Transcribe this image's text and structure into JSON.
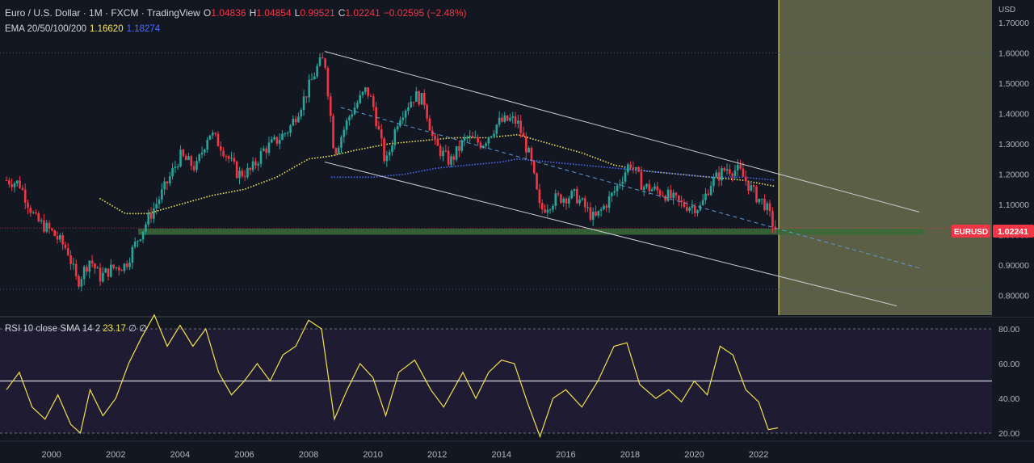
{
  "header": {
    "title": "Euro / U.S. Dollar · 1M · FXCM · TradingView",
    "open_label": "O",
    "open": "1.04836",
    "high_label": "H",
    "high": "1.04854",
    "low_label": "L",
    "low": "0.99521",
    "close_label": "C",
    "close": "1.02241",
    "change": "−0.02595 (−2.48%)",
    "ema_label": "EMA 20/50/100/200",
    "ema_value_1": "1.16620",
    "ema_value_2": "1.18274"
  },
  "rsi_header": {
    "label": "RSI 10 close SMA 14 2",
    "value": "23.17",
    "extra_1": "∅",
    "extra_2": "∅"
  },
  "price_axis": {
    "unit": "USD",
    "ticks": [
      "1.70000",
      "1.60000",
      "1.50000",
      "1.40000",
      "1.30000",
      "1.20000",
      "1.10000",
      "1.00000",
      "0.90000",
      "0.80000"
    ],
    "symbol_tag": "EURUSD",
    "last_price_tag": "1.02241"
  },
  "rsi_axis": {
    "ticks": [
      "80.00",
      "60.00",
      "40.00",
      "20.00"
    ]
  },
  "time_axis": {
    "ticks": [
      "2000",
      "2002",
      "2004",
      "2006",
      "2008",
      "2010",
      "2012",
      "2014",
      "2016",
      "2018",
      "2020",
      "2022"
    ]
  },
  "colors": {
    "background": "#131722",
    "bull": "#26a69a",
    "bear": "#f23645",
    "ema_yellow": "#f5e85a",
    "ema_blue": "#4d6bff",
    "rsi_line": "#f2e14b",
    "projection_zone": "#5b5f45",
    "support_zone": "#3a6b3a"
  },
  "chart_data": [
    {
      "type": "candlestick",
      "title": "Euro / U.S. Dollar · 1M · FXCM",
      "x_range": [
        1998.6,
        2022.6
      ],
      "ylim": [
        0.76,
        1.72
      ],
      "y_unit": "USD",
      "approximate_monthly_closes": [
        {
          "x": 1998.6,
          "y": 1.18
        },
        {
          "x": 1999.0,
          "y": 1.17
        },
        {
          "x": 1999.5,
          "y": 1.05
        },
        {
          "x": 2000.0,
          "y": 1.01
        },
        {
          "x": 2000.5,
          "y": 0.95
        },
        {
          "x": 2000.8,
          "y": 0.84
        },
        {
          "x": 2001.2,
          "y": 0.92
        },
        {
          "x": 2001.5,
          "y": 0.86
        },
        {
          "x": 2001.9,
          "y": 0.89
        },
        {
          "x": 2002.3,
          "y": 0.9
        },
        {
          "x": 2002.7,
          "y": 0.99
        },
        {
          "x": 2003.0,
          "y": 1.05
        },
        {
          "x": 2003.5,
          "y": 1.15
        },
        {
          "x": 2004.0,
          "y": 1.26
        },
        {
          "x": 2004.5,
          "y": 1.22
        },
        {
          "x": 2004.9,
          "y": 1.34
        },
        {
          "x": 2005.3,
          "y": 1.29
        },
        {
          "x": 2005.8,
          "y": 1.2
        },
        {
          "x": 2006.2,
          "y": 1.21
        },
        {
          "x": 2006.6,
          "y": 1.28
        },
        {
          "x": 2007.0,
          "y": 1.31
        },
        {
          "x": 2007.4,
          "y": 1.35
        },
        {
          "x": 2007.9,
          "y": 1.46
        },
        {
          "x": 2008.3,
          "y": 1.56
        },
        {
          "x": 2008.5,
          "y": 1.58
        },
        {
          "x": 2008.8,
          "y": 1.27
        },
        {
          "x": 2009.3,
          "y": 1.4
        },
        {
          "x": 2009.8,
          "y": 1.48
        },
        {
          "x": 2010.0,
          "y": 1.43
        },
        {
          "x": 2010.4,
          "y": 1.23
        },
        {
          "x": 2010.8,
          "y": 1.39
        },
        {
          "x": 2011.3,
          "y": 1.46
        },
        {
          "x": 2011.6,
          "y": 1.44
        },
        {
          "x": 2011.9,
          "y": 1.3
        },
        {
          "x": 2012.4,
          "y": 1.24
        },
        {
          "x": 2012.9,
          "y": 1.32
        },
        {
          "x": 2013.4,
          "y": 1.3
        },
        {
          "x": 2013.9,
          "y": 1.37
        },
        {
          "x": 2014.3,
          "y": 1.38
        },
        {
          "x": 2014.5,
          "y": 1.37
        },
        {
          "x": 2014.9,
          "y": 1.25
        },
        {
          "x": 2015.2,
          "y": 1.08
        },
        {
          "x": 2015.7,
          "y": 1.12
        },
        {
          "x": 2016.3,
          "y": 1.13
        },
        {
          "x": 2016.9,
          "y": 1.05
        },
        {
          "x": 2017.5,
          "y": 1.14
        },
        {
          "x": 2018.0,
          "y": 1.24
        },
        {
          "x": 2018.4,
          "y": 1.16
        },
        {
          "x": 2019.0,
          "y": 1.14
        },
        {
          "x": 2019.6,
          "y": 1.1
        },
        {
          "x": 2020.2,
          "y": 1.09
        },
        {
          "x": 2020.5,
          "y": 1.17
        },
        {
          "x": 2021.0,
          "y": 1.22
        },
        {
          "x": 2021.4,
          "y": 1.21
        },
        {
          "x": 2021.9,
          "y": 1.13
        },
        {
          "x": 2022.2,
          "y": 1.1
        },
        {
          "x": 2022.5,
          "y": 1.02
        }
      ],
      "ema_yellow": [
        {
          "x": 2001.5,
          "y": 1.12
        },
        {
          "x": 2002.3,
          "y": 1.07
        },
        {
          "x": 2003.0,
          "y": 1.07
        },
        {
          "x": 2004.0,
          "y": 1.1
        },
        {
          "x": 2005.0,
          "y": 1.13
        },
        {
          "x": 2006.0,
          "y": 1.15
        },
        {
          "x": 2007.0,
          "y": 1.19
        },
        {
          "x": 2008.0,
          "y": 1.25
        },
        {
          "x": 2008.7,
          "y": 1.26
        },
        {
          "x": 2009.5,
          "y": 1.28
        },
        {
          "x": 2010.5,
          "y": 1.3
        },
        {
          "x": 2011.5,
          "y": 1.31
        },
        {
          "x": 2012.5,
          "y": 1.32
        },
        {
          "x": 2013.5,
          "y": 1.32
        },
        {
          "x": 2014.5,
          "y": 1.33
        },
        {
          "x": 2015.5,
          "y": 1.3
        },
        {
          "x": 2016.5,
          "y": 1.27
        },
        {
          "x": 2017.5,
          "y": 1.23
        },
        {
          "x": 2018.5,
          "y": 1.21
        },
        {
          "x": 2019.5,
          "y": 1.2
        },
        {
          "x": 2020.5,
          "y": 1.19
        },
        {
          "x": 2021.5,
          "y": 1.18
        },
        {
          "x": 2022.5,
          "y": 1.16
        }
      ],
      "ema_blue": [
        {
          "x": 2008.7,
          "y": 1.19
        },
        {
          "x": 2010.0,
          "y": 1.19
        },
        {
          "x": 2011.0,
          "y": 1.2
        },
        {
          "x": 2012.0,
          "y": 1.22
        },
        {
          "x": 2013.0,
          "y": 1.23
        },
        {
          "x": 2014.0,
          "y": 1.24
        },
        {
          "x": 2014.5,
          "y": 1.25
        },
        {
          "x": 2015.5,
          "y": 1.24
        },
        {
          "x": 2016.5,
          "y": 1.23
        },
        {
          "x": 2017.5,
          "y": 1.22
        },
        {
          "x": 2018.5,
          "y": 1.21
        },
        {
          "x": 2019.5,
          "y": 1.2
        },
        {
          "x": 2020.5,
          "y": 1.19
        },
        {
          "x": 2021.5,
          "y": 1.19
        },
        {
          "x": 2022.5,
          "y": 1.18
        }
      ],
      "channel_upper": [
        {
          "x": 2008.5,
          "y": 1.605
        },
        {
          "x": 2027.0,
          "y": 1.075
        }
      ],
      "channel_lower": [
        {
          "x": 2008.5,
          "y": 1.24
        },
        {
          "x": 2026.3,
          "y": 0.765
        }
      ],
      "channel_mid": [
        {
          "x": 2009.0,
          "y": 1.42
        },
        {
          "x": 2027.0,
          "y": 0.89
        }
      ],
      "support_zone": [
        1.0,
        1.02
      ],
      "last_close": 1.02241
    },
    {
      "type": "line",
      "title": "RSI 10 close SMA 14 2",
      "x_range": [
        1998.6,
        2022.6
      ],
      "ylim": [
        15,
        90
      ],
      "levels": [
        80,
        50,
        20
      ],
      "series": [
        {
          "values": [
            {
              "x": 1998.6,
              "y": 45
            },
            {
              "x": 1999.0,
              "y": 55
            },
            {
              "x": 1999.4,
              "y": 35
            },
            {
              "x": 1999.8,
              "y": 28
            },
            {
              "x": 2000.2,
              "y": 42
            },
            {
              "x": 2000.6,
              "y": 25
            },
            {
              "x": 2000.9,
              "y": 20
            },
            {
              "x": 2001.2,
              "y": 45
            },
            {
              "x": 2001.6,
              "y": 30
            },
            {
              "x": 2002.0,
              "y": 40
            },
            {
              "x": 2002.4,
              "y": 60
            },
            {
              "x": 2002.8,
              "y": 75
            },
            {
              "x": 2003.2,
              "y": 88
            },
            {
              "x": 2003.6,
              "y": 70
            },
            {
              "x": 2004.0,
              "y": 82
            },
            {
              "x": 2004.4,
              "y": 70
            },
            {
              "x": 2004.8,
              "y": 80
            },
            {
              "x": 2005.2,
              "y": 55
            },
            {
              "x": 2005.6,
              "y": 42
            },
            {
              "x": 2006.0,
              "y": 50
            },
            {
              "x": 2006.4,
              "y": 60
            },
            {
              "x": 2006.8,
              "y": 50
            },
            {
              "x": 2007.2,
              "y": 65
            },
            {
              "x": 2007.6,
              "y": 70
            },
            {
              "x": 2008.0,
              "y": 85
            },
            {
              "x": 2008.4,
              "y": 80
            },
            {
              "x": 2008.8,
              "y": 28
            },
            {
              "x": 2009.2,
              "y": 45
            },
            {
              "x": 2009.6,
              "y": 60
            },
            {
              "x": 2010.0,
              "y": 52
            },
            {
              "x": 2010.4,
              "y": 30
            },
            {
              "x": 2010.8,
              "y": 55
            },
            {
              "x": 2011.3,
              "y": 62
            },
            {
              "x": 2011.8,
              "y": 45
            },
            {
              "x": 2012.2,
              "y": 35
            },
            {
              "x": 2012.8,
              "y": 55
            },
            {
              "x": 2013.2,
              "y": 40
            },
            {
              "x": 2013.6,
              "y": 55
            },
            {
              "x": 2014.0,
              "y": 62
            },
            {
              "x": 2014.4,
              "y": 60
            },
            {
              "x": 2014.8,
              "y": 38
            },
            {
              "x": 2015.2,
              "y": 18
            },
            {
              "x": 2015.6,
              "y": 40
            },
            {
              "x": 2016.0,
              "y": 45
            },
            {
              "x": 2016.5,
              "y": 35
            },
            {
              "x": 2017.0,
              "y": 50
            },
            {
              "x": 2017.5,
              "y": 70
            },
            {
              "x": 2017.9,
              "y": 72
            },
            {
              "x": 2018.3,
              "y": 48
            },
            {
              "x": 2018.8,
              "y": 40
            },
            {
              "x": 2019.2,
              "y": 45
            },
            {
              "x": 2019.6,
              "y": 38
            },
            {
              "x": 2020.0,
              "y": 50
            },
            {
              "x": 2020.4,
              "y": 42
            },
            {
              "x": 2020.8,
              "y": 70
            },
            {
              "x": 2021.2,
              "y": 65
            },
            {
              "x": 2021.6,
              "y": 45
            },
            {
              "x": 2022.0,
              "y": 38
            },
            {
              "x": 2022.3,
              "y": 22
            },
            {
              "x": 2022.6,
              "y": 23
            }
          ]
        }
      ],
      "last_value": 23.17
    }
  ]
}
